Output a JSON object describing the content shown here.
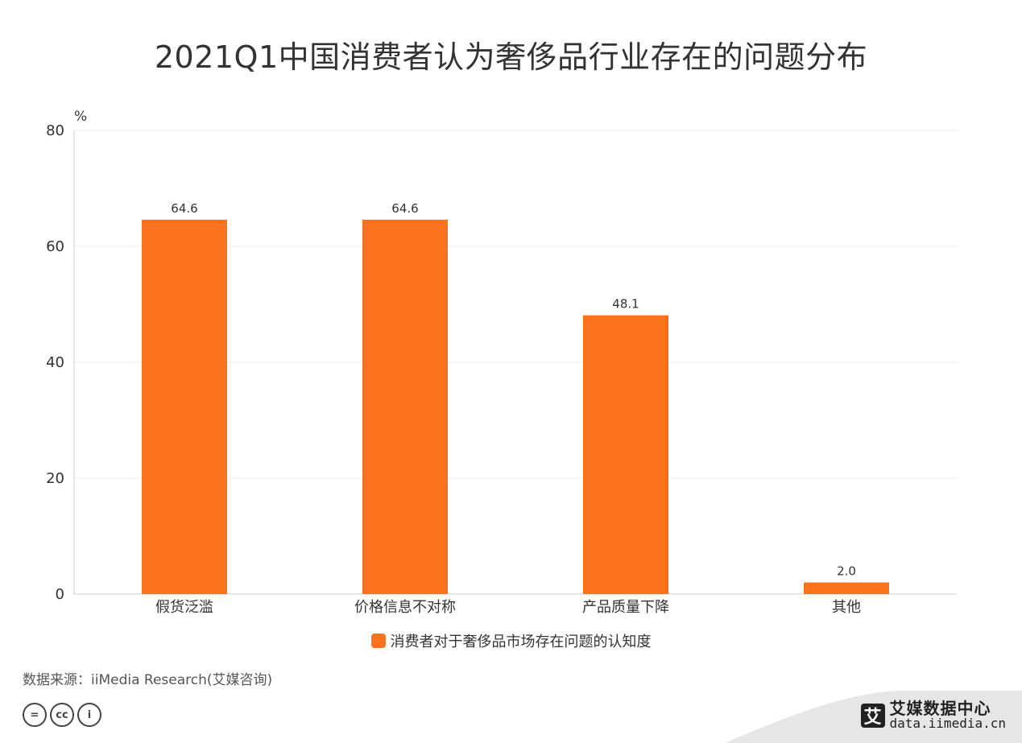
{
  "chart_data": {
    "type": "bar",
    "title": "2021Q1中国消费者认为奢侈品行业存在的问题分布",
    "ylabel": "%",
    "xlabel": "",
    "ylim": [
      0,
      80
    ],
    "yticks": [
      "0",
      "20",
      "40",
      "60",
      "80"
    ],
    "categories": [
      "假货泛滥",
      "价格信息不对称",
      "产品质量下降",
      "其他"
    ],
    "series": [
      {
        "name": "消费者对于奢侈品市场存在问题的认知度",
        "values": [
          64.6,
          64.6,
          48.1,
          2.0
        ],
        "labels": [
          "64.6",
          "64.6",
          "48.1",
          "2.0"
        ],
        "color": "#fa721b"
      }
    ],
    "grid": true,
    "legend": "bottom"
  },
  "footer": {
    "source": "数据来源：iiMedia Research(艾媒咨询)",
    "license_icons": [
      "equals-icon",
      "cc-icon",
      "person-icon"
    ],
    "license_glyphs": [
      "=",
      "cc",
      "i"
    ],
    "brand_name": "艾媒数据中心",
    "brand_url": "data.iimedia.cn",
    "brand_mark": "艾"
  },
  "colors": {
    "bar": "#fa721b",
    "grid": "#eeeeee",
    "axis": "#cccccc"
  }
}
